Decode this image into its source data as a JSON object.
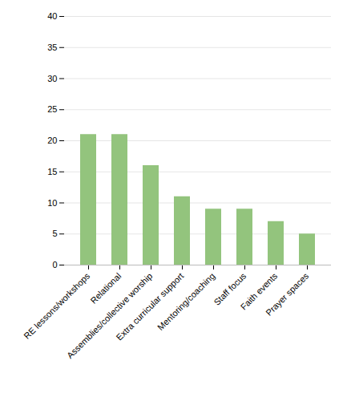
{
  "chart_data": {
    "type": "bar",
    "categories": [
      "RE lessons/workshops",
      "Relational",
      "Assemblies/collective worship",
      "Extra curricular support",
      "Mentoring/coaching",
      "Staff focus",
      "Faith events",
      "Prayer spaces"
    ],
    "values": [
      21,
      21,
      16,
      11,
      9,
      9,
      7,
      5
    ],
    "color": "#93c47d",
    "ylim": [
      0,
      40
    ],
    "yticks": [
      0,
      5,
      10,
      15,
      20,
      25,
      30,
      35,
      40
    ],
    "grid": true
  }
}
